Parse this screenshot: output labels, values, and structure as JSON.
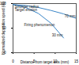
{
  "chart_data": {
    "type": "line",
    "x_label": "Distance from target axis (mm)",
    "y_label": "Normalized deposition speed (%)",
    "annotations": [
      "Stronger radius",
      "Target erosion",
      "Firing phenomenon"
    ],
    "x": [
      0,
      3,
      6,
      9,
      12,
      15
    ],
    "series": [
      {
        "name": "70 mm",
        "color": "#3a86c8",
        "values": [
          98,
          96,
          92,
          86,
          79,
          70
        ]
      },
      {
        "name": "30 mm",
        "color": "#3a86c8",
        "values": [
          98,
          92,
          80,
          60,
          30,
          null
        ]
      }
    ],
    "xlim": [
      0,
      15
    ],
    "xticks": [
      0,
      5,
      10,
      15
    ],
    "ylim": [
      0,
      100
    ],
    "yticks": [
      0,
      50,
      100
    ],
    "grid": false
  }
}
